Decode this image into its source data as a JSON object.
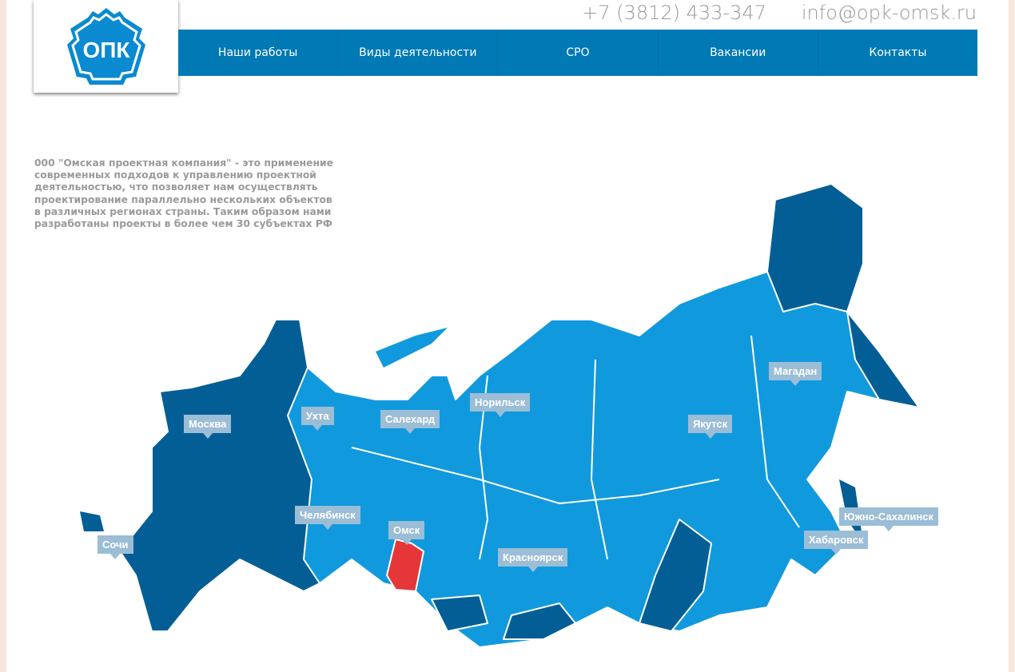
{
  "header": {
    "logo_text": "ОПК",
    "phone": "+7 (3812) 433-347",
    "email": "info@opk-omsk.ru"
  },
  "nav": [
    {
      "label": "Наши работы"
    },
    {
      "label": "Виды деятельности"
    },
    {
      "label": "СРО"
    },
    {
      "label": "Вакансии"
    },
    {
      "label": "Контакты"
    }
  ],
  "intro": "000 \"Омская проектная компания\" - это применение современных подходов к управлению проектной деятельностью, что позволяет нам осуществлять проектирование параллельно нескольких объектов в различных регионах страны. Таким образом нами разработаны проекты в более чем 30 субъектах РФ",
  "map": {
    "colors": {
      "base": "#1199dd",
      "dark": "#045e96",
      "highlight": "#e5363a",
      "label": "#9bbdd6"
    },
    "highlighted_region": "Омск",
    "cities": [
      "Москва",
      "Ухта",
      "Салехард",
      "Норильск",
      "Магадан",
      "Якутск",
      "Челябинск",
      "Омск",
      "Сочи",
      "Красноярск",
      "Южно-Сахалинск",
      "Хабаровск"
    ]
  }
}
